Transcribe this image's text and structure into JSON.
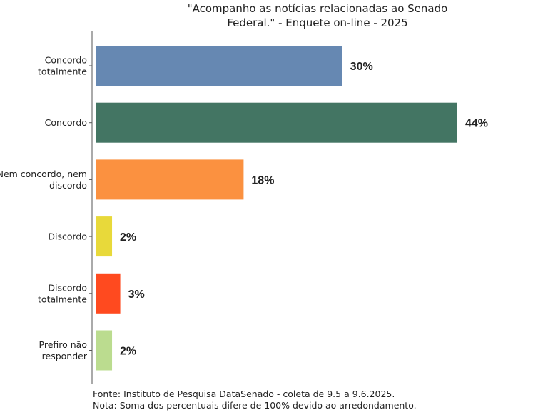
{
  "chart_data": {
    "type": "bar",
    "orientation": "horizontal",
    "title": [
      "\"Acompanho as notícias relacionadas ao Senado",
      "Federal.\" - Enquete on-line - 2025"
    ],
    "categories": [
      [
        "Concordo",
        "totalmente"
      ],
      [
        "Concordo"
      ],
      [
        "Nem concordo, nem",
        "discordo"
      ],
      [
        "Discordo"
      ],
      [
        "Discordo",
        "totalmente"
      ],
      [
        "Prefiro não",
        "responder"
      ]
    ],
    "values": [
      30,
      44,
      18,
      2,
      3,
      2
    ],
    "value_labels": [
      "30%",
      "44%",
      "18%",
      "2%",
      "3%",
      "2%"
    ],
    "colors": [
      "#6688b2",
      "#437563",
      "#fb9140",
      "#e8d93a",
      "#ff4a1f",
      "#bbdc8f"
    ],
    "xlabel": "",
    "ylabel": "",
    "xlim": [
      0,
      50
    ],
    "grid": false,
    "legend": "none"
  },
  "footer": {
    "source": "Fonte: Instituto de Pesquisa DataSenado - coleta de 9.5 a 9.6.2025.",
    "note": "Nota: Soma dos percentuais difere de 100% devido ao arredondamento."
  }
}
